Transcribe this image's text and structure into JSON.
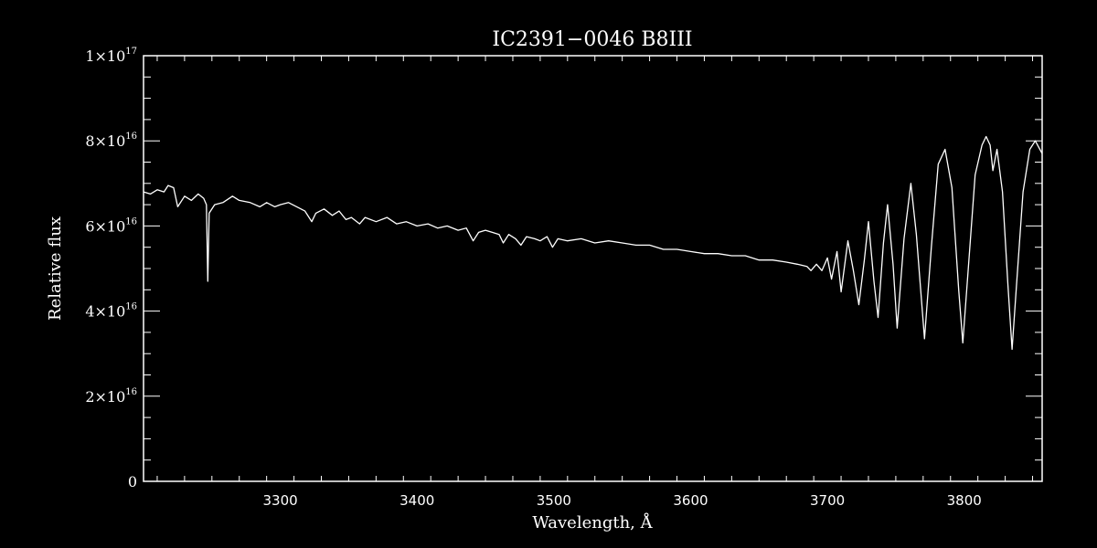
{
  "chart_data": {
    "type": "line",
    "title": "IC2391−0046   B8III",
    "xlabel": "Wavelength, Å",
    "ylabel": "Relative flux",
    "xlim": [
      3200,
      3857
    ],
    "ylim": [
      0,
      1e+17
    ],
    "x_ticks": [
      3300,
      3400,
      3500,
      3600,
      3700,
      3800
    ],
    "x_tick_labels": [
      "3300",
      "3400",
      "3500",
      "3600",
      "3700",
      "3800"
    ],
    "y_ticks": [
      {
        "value": 0,
        "mantissa": "0",
        "exponent": ""
      },
      {
        "value": 2e+16,
        "mantissa": "2×10",
        "exponent": "16"
      },
      {
        "value": 4e+16,
        "mantissa": "4×10",
        "exponent": "16"
      },
      {
        "value": 6e+16,
        "mantissa": "6×10",
        "exponent": "16"
      },
      {
        "value": 8e+16,
        "mantissa": "8×10",
        "exponent": "16"
      },
      {
        "value": 1e+17,
        "mantissa": "1×10",
        "exponent": "17"
      }
    ],
    "grid": false,
    "series": [
      {
        "color": "#ffffff",
        "points": [
          [
            3200,
            6.8e+16
          ],
          [
            3205,
            6.75e+16
          ],
          [
            3210,
            6.85e+16
          ],
          [
            3215,
            6.8e+16
          ],
          [
            3218,
            6.95e+16
          ],
          [
            3222,
            6.9e+16
          ],
          [
            3225,
            6.45e+16
          ],
          [
            3230,
            6.7e+16
          ],
          [
            3235,
            6.6e+16
          ],
          [
            3240,
            6.75e+16
          ],
          [
            3244,
            6.65e+16
          ],
          [
            3246,
            6.5e+16
          ],
          [
            3247,
            4.7e+16
          ],
          [
            3248,
            6.3e+16
          ],
          [
            3252,
            6.5e+16
          ],
          [
            3258,
            6.55e+16
          ],
          [
            3265,
            6.7e+16
          ],
          [
            3270,
            6.6e+16
          ],
          [
            3278,
            6.55e+16
          ],
          [
            3285,
            6.45e+16
          ],
          [
            3290,
            6.55e+16
          ],
          [
            3296,
            6.45e+16
          ],
          [
            3300,
            6.5e+16
          ],
          [
            3306,
            6.55e+16
          ],
          [
            3312,
            6.45e+16
          ],
          [
            3318,
            6.35e+16
          ],
          [
            3323,
            6.1e+16
          ],
          [
            3326,
            6.3e+16
          ],
          [
            3332,
            6.4e+16
          ],
          [
            3338,
            6.25e+16
          ],
          [
            3343,
            6.35e+16
          ],
          [
            3348,
            6.15e+16
          ],
          [
            3352,
            6.2e+16
          ],
          [
            3358,
            6.05e+16
          ],
          [
            3362,
            6.2e+16
          ],
          [
            3370,
            6.1e+16
          ],
          [
            3378,
            6.2e+16
          ],
          [
            3385,
            6.05e+16
          ],
          [
            3392,
            6.1e+16
          ],
          [
            3400,
            6e+16
          ],
          [
            3408,
            6.05e+16
          ],
          [
            3415,
            5.95e+16
          ],
          [
            3422,
            6e+16
          ],
          [
            3430,
            5.9e+16
          ],
          [
            3436,
            5.95e+16
          ],
          [
            3441,
            5.65e+16
          ],
          [
            3445,
            5.85e+16
          ],
          [
            3450,
            5.9e+16
          ],
          [
            3455,
            5.85e+16
          ],
          [
            3460,
            5.8e+16
          ],
          [
            3463,
            5.6e+16
          ],
          [
            3467,
            5.8e+16
          ],
          [
            3472,
            5.7e+16
          ],
          [
            3476,
            5.55e+16
          ],
          [
            3480,
            5.75e+16
          ],
          [
            3486,
            5.7e+16
          ],
          [
            3490,
            5.65e+16
          ],
          [
            3495,
            5.75e+16
          ],
          [
            3499,
            5.5e+16
          ],
          [
            3503,
            5.7e+16
          ],
          [
            3510,
            5.65e+16
          ],
          [
            3520,
            5.7e+16
          ],
          [
            3530,
            5.6e+16
          ],
          [
            3540,
            5.65e+16
          ],
          [
            3550,
            5.6e+16
          ],
          [
            3560,
            5.55e+16
          ],
          [
            3570,
            5.55e+16
          ],
          [
            3580,
            5.45e+16
          ],
          [
            3590,
            5.45e+16
          ],
          [
            3600,
            5.4e+16
          ],
          [
            3610,
            5.35e+16
          ],
          [
            3620,
            5.35e+16
          ],
          [
            3630,
            5.3e+16
          ],
          [
            3640,
            5.3e+16
          ],
          [
            3650,
            5.2e+16
          ],
          [
            3660,
            5.2e+16
          ],
          [
            3670,
            5.15e+16
          ],
          [
            3678,
            5.1e+16
          ],
          [
            3685,
            5.05e+16
          ],
          [
            3688,
            4.95e+16
          ],
          [
            3692,
            5.1e+16
          ],
          [
            3696,
            4.95e+16
          ],
          [
            3700,
            5.25e+16
          ],
          [
            3703,
            4.75e+16
          ],
          [
            3707,
            5.4e+16
          ],
          [
            3710,
            4.45e+16
          ],
          [
            3715,
            5.65e+16
          ],
          [
            3719,
            4.95e+16
          ],
          [
            3723,
            4.15e+16
          ],
          [
            3727,
            5.2e+16
          ],
          [
            3730,
            6.1e+16
          ],
          [
            3734,
            4.7e+16
          ],
          [
            3737,
            3.85e+16
          ],
          [
            3741,
            5.6e+16
          ],
          [
            3744,
            6.5e+16
          ],
          [
            3748,
            5.1e+16
          ],
          [
            3751,
            3.6e+16
          ],
          [
            3756,
            5.7e+16
          ],
          [
            3761,
            7e+16
          ],
          [
            3765,
            5.8e+16
          ],
          [
            3771,
            3.35e+16
          ],
          [
            3776,
            5.5e+16
          ],
          [
            3781,
            7.45e+16
          ],
          [
            3786,
            7.8e+16
          ],
          [
            3791,
            6.9e+16
          ],
          [
            3796,
            4.5e+16
          ],
          [
            3799,
            3.25e+16
          ],
          [
            3803,
            5e+16
          ],
          [
            3808,
            7.2e+16
          ],
          [
            3813,
            7.9e+16
          ],
          [
            3816,
            8.1e+16
          ],
          [
            3819,
            7.9e+16
          ],
          [
            3821,
            7.3e+16
          ],
          [
            3824,
            7.8e+16
          ],
          [
            3828,
            6.8e+16
          ],
          [
            3832,
            4.6e+16
          ],
          [
            3835,
            3.1e+16
          ],
          [
            3838,
            4.5e+16
          ],
          [
            3843,
            6.8e+16
          ],
          [
            3848,
            7.8e+16
          ],
          [
            3852,
            8e+16
          ],
          [
            3857,
            7.7e+16
          ]
        ]
      }
    ]
  }
}
